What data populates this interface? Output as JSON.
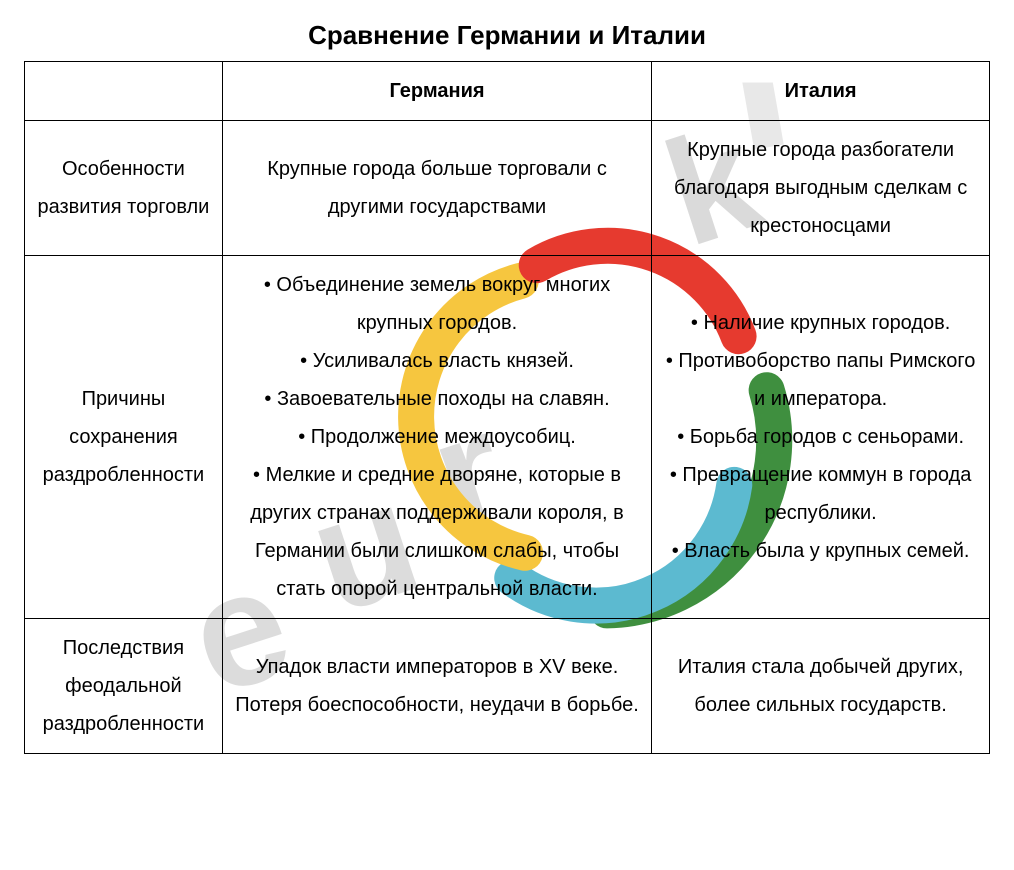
{
  "title": "Сравнение Германии и Италии",
  "columns": {
    "germany": "Германия",
    "italy": "Италия"
  },
  "rows": [
    {
      "label": "Особенности развития торговли",
      "germany": "Крупные города больше торговали с другими государствами",
      "italy": "Крупные города разбогатели благодаря выгодным сделкам с крестоносцами"
    },
    {
      "label": "Причины сохранения раздробленности",
      "germany": "• Объединение земель вокруг многих крупных городов.\n• Усиливалась власть князей.\n• Завоевательные походы на славян.\n• Продолжение междоусобиц.\n• Мелкие и средние дворяне, которые в других странах поддерживали короля, в Германии были слишком слабы, чтобы стать опорой центральной власти.",
      "italy": "• Наличие крупных городов.\n• Противоборство папы Римского и императора.\n• Борьба городов с сеньорами.\n• Превращение коммун в города республики.\n• Власть была у крупных семей."
    },
    {
      "label": "Последствия феодальной раздробленности",
      "germany": "Упадок власти императоров в XV веке. Потеря боеспособности, неудачи в борьбе.",
      "italy": "Италия стала добычей других, более сильных государств."
    }
  ],
  "watermark": {
    "text_upper": "e u r",
    "text_lower": "k",
    "colors": {
      "red": "#e63a2f",
      "yellow": "#f6c63f",
      "blue": "#5cbad0",
      "green": "#3f8f3f",
      "gray": "#d9d9d9"
    },
    "font_size": 160,
    "stroke_width": 36
  }
}
